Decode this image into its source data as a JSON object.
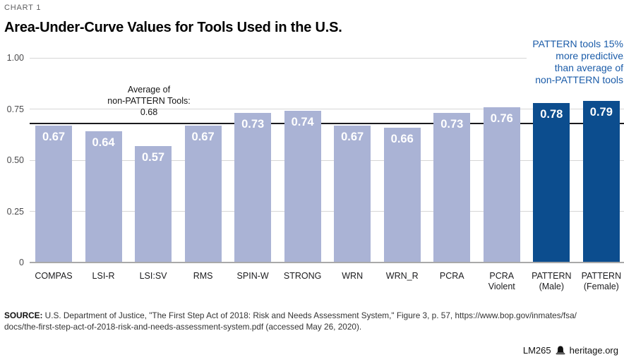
{
  "kicker": "CHART 1",
  "title": "Area-Under-Curve Values for Tools Used in the U.S.",
  "annotations": {
    "average_note": "Average of\nnon-PATTERN Tools:\n0.68",
    "pattern_note": "PATTERN tools 15%\nmore predictive\nthan average of\nnon-PATTERN tools"
  },
  "colors": {
    "default_bar": "#AAB3D5",
    "pattern_bar": "#0C4D8E",
    "annotation_blue": "#1B5CA9",
    "average_line": "#1A1A1E",
    "gridline": "#D6D6D6",
    "baseline": "#A9A9A9"
  },
  "chart_data": {
    "type": "bar",
    "title": "Area-Under-Curve Values for Tools Used in the U.S.",
    "xlabel": "",
    "ylabel": "",
    "categories": [
      "COMPAS",
      "LSI-R",
      "LSI:SV",
      "RMS",
      "SPIN-W",
      "STRONG",
      "WRN",
      "WRN_R",
      "PCRA",
      "PCRA\nViolent",
      "PATTERN\n(Male)",
      "PATTERN\n(Female)"
    ],
    "values": [
      0.67,
      0.64,
      0.57,
      0.67,
      0.73,
      0.74,
      0.67,
      0.66,
      0.73,
      0.76,
      0.78,
      0.79
    ],
    "highlight_indices": [
      10,
      11
    ],
    "average_line": 0.68,
    "ylim": [
      0,
      1
    ],
    "yticks": [
      {
        "label": "1.00",
        "value": 1
      },
      {
        "label": "0.75",
        "value": 0.75
      },
      {
        "label": "0.50",
        "value": 0.5
      },
      {
        "label": "0.25",
        "value": 0.25
      },
      {
        "label": "0",
        "value": 0
      }
    ],
    "grid": true,
    "legend_position": "none"
  },
  "source": {
    "label": "SOURCE:",
    "line1": " U.S. Department of Justice, \"The First Step Act of 2018: Risk and Needs Assessment System,\" Figure 3, p. 57, https://www.bop.gov/inmates/fsa/",
    "line2": "docs/the-first-step-act-of-2018-risk-and-needs-assessment-system.pdf (accessed May 26, 2020)."
  },
  "footer": {
    "chart_id": "LM265",
    "site": "heritage.org",
    "logo_icon": "heritage-bell-icon"
  }
}
